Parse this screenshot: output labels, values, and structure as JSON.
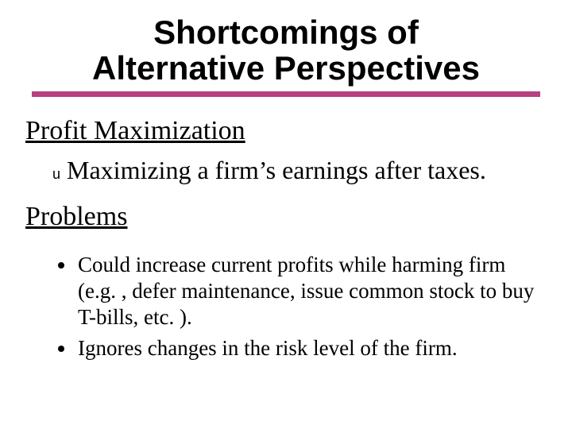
{
  "title_line1": "Shortcomings of",
  "title_line2": "Alternative Perspectives",
  "rule_color": "#b7407f",
  "section1": "Profit Maximization",
  "sub_marker": "u",
  "sub_text": "Maximizing a firm’s earnings after taxes.",
  "section2": "Problems",
  "bullets": [
    "Could increase current profits while harming firm (e.g. , defer maintenance, issue common stock to buy T-bills, etc. ).",
    "Ignores changes in the risk level of the firm."
  ],
  "fonts": {
    "title_family": "Arial",
    "title_weight": 700,
    "title_size_pt": 32,
    "body_family": "Times New Roman",
    "section_size_pt": 26,
    "sub_size_pt": 24,
    "bullet_size_pt": 20
  },
  "colors": {
    "background": "#ffffff",
    "text": "#000000",
    "accent": "#b7407f"
  }
}
